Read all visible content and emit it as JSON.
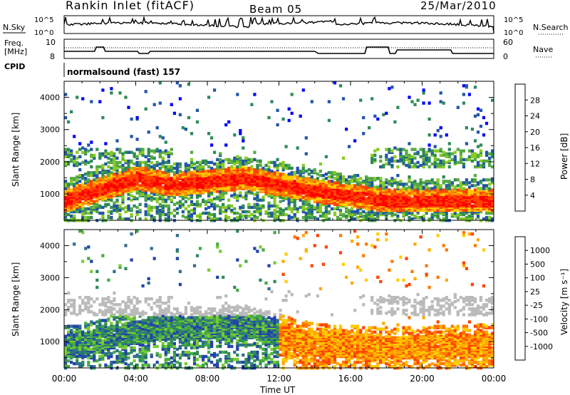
{
  "header": {
    "title": "Rankin Inlet (fitACF)",
    "beam": "Beam 05",
    "date": "25/Mar/2010"
  },
  "noise_panel": {
    "left_label": "N.Sky",
    "right_label": "N.Search",
    "left_ticks": [
      "10^5",
      "10^0"
    ],
    "right_ticks": [
      "10^5",
      "10^0"
    ]
  },
  "freq_panel": {
    "left_label_1": "Freq.",
    "left_label_2": "[MHz]",
    "left_ticks": [
      "10",
      "8"
    ],
    "right_label": "Nave",
    "right_ticks": [
      "60",
      "0"
    ]
  },
  "cpid": {
    "label": "CPID",
    "value": "normalsound (fast) 157"
  },
  "time_axis": {
    "label": "Time UT",
    "ticks": [
      "00:00",
      "04:00",
      "08:00",
      "12:00",
      "16:00",
      "20:00",
      "00:00"
    ]
  },
  "power_panel": {
    "ylabel": "Slant Range [km]",
    "yticks": [
      "1000",
      "2000",
      "3000",
      "4000"
    ],
    "colorbar_label": "Power [dB]",
    "colorbar_ticks": [
      "4",
      "8",
      "12",
      "16",
      "20",
      "24",
      "28"
    ],
    "colors": [
      "#0000ff",
      "#2255aa",
      "#2e8b57",
      "#55aa44",
      "#88cc22",
      "#ffcc00",
      "#ff8800",
      "#ff4400",
      "#ff0000"
    ]
  },
  "velocity_panel": {
    "ylabel": "Slant Range [km]",
    "yticks": [
      "1000",
      "2000",
      "3000",
      "4000"
    ],
    "colorbar_label": "Velocity [m s⁻¹]",
    "colorbar_ticks": [
      "1000",
      "500",
      "100",
      "25",
      "-25",
      "-100",
      "-500",
      "-1000"
    ],
    "colors": [
      "#2244aa",
      "#2e6e8e",
      "#2e8b57",
      "#44aa44",
      "#77cc33",
      "#bbbbbb",
      "#ffcc00",
      "#ffaa00",
      "#ff7700",
      "#ff4400",
      "#ff0000"
    ]
  },
  "chart_data": {
    "type": "heatmap",
    "x_range_hours": [
      0,
      24
    ],
    "y_range_km": [
      180,
      4500
    ],
    "series": [
      {
        "name": "Power [dB]",
        "value_range": [
          0,
          30
        ],
        "band_center_km": [
          800,
          1500,
          1300,
          1500,
          1100,
          800,
          800
        ],
        "band_hours": [
          0,
          4,
          6,
          10,
          14,
          18,
          24
        ]
      },
      {
        "name": "Velocity [m s⁻¹]",
        "value_range": [
          -1000,
          1000
        ],
        "band_center_km": [
          800,
          1300,
          1400,
          1500,
          900,
          800,
          900
        ],
        "band_hours": [
          0,
          4,
          6,
          10,
          14,
          18,
          24
        ]
      }
    ]
  }
}
